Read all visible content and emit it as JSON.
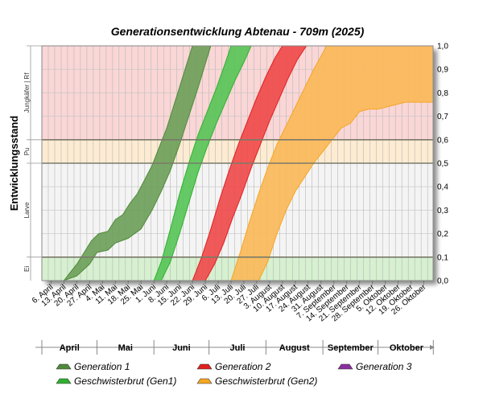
{
  "chart_data": {
    "type": "area",
    "title": "Generationsentwicklung Abtenau - 709m (2025)",
    "ylabel": "Entwicklungsstand",
    "ylim": [
      0,
      1
    ],
    "yticks": [
      "0,0",
      "0,1",
      "0,2",
      "0,3",
      "0,4",
      "0,5",
      "0,6",
      "0,7",
      "0,8",
      "0,9",
      "1,0"
    ],
    "grid": true,
    "legend_position": "bottom",
    "x_start": "2025-04-01",
    "x_end": "2025-10-31",
    "x_ticks": [
      {
        "date": "2025-04-06",
        "label": "6. April"
      },
      {
        "date": "2025-04-13",
        "label": "13. April"
      },
      {
        "date": "2025-04-20",
        "label": "20. April"
      },
      {
        "date": "2025-04-27",
        "label": "27. April"
      },
      {
        "date": "2025-05-04",
        "label": "4. Mai"
      },
      {
        "date": "2025-05-11",
        "label": "11. Mai"
      },
      {
        "date": "2025-05-18",
        "label": "18. Mai"
      },
      {
        "date": "2025-05-25",
        "label": "25. Mai"
      },
      {
        "date": "2025-06-01",
        "label": "1. Juni"
      },
      {
        "date": "2025-06-08",
        "label": "8. Juni"
      },
      {
        "date": "2025-06-15",
        "label": "15. Juni"
      },
      {
        "date": "2025-06-22",
        "label": "22. Juni"
      },
      {
        "date": "2025-06-29",
        "label": "29. Juni"
      },
      {
        "date": "2025-07-06",
        "label": "6. Juli"
      },
      {
        "date": "2025-07-13",
        "label": "13. Juli"
      },
      {
        "date": "2025-07-20",
        "label": "20. Juli"
      },
      {
        "date": "2025-07-27",
        "label": "27. Juli"
      },
      {
        "date": "2025-08-03",
        "label": "3. August"
      },
      {
        "date": "2025-08-10",
        "label": "10. August"
      },
      {
        "date": "2025-08-17",
        "label": "17. August"
      },
      {
        "date": "2025-08-24",
        "label": "24. August"
      },
      {
        "date": "2025-08-31",
        "label": "31. August"
      },
      {
        "date": "2025-09-07",
        "label": "7. September"
      },
      {
        "date": "2025-09-14",
        "label": "14. September"
      },
      {
        "date": "2025-09-21",
        "label": "21. September"
      },
      {
        "date": "2025-09-28",
        "label": "28. September"
      },
      {
        "date": "2025-10-05",
        "label": "5. Oktober"
      },
      {
        "date": "2025-10-12",
        "label": "12. Oktober"
      },
      {
        "date": "2025-10-19",
        "label": "19. Oktober"
      },
      {
        "date": "2025-10-26",
        "label": "26. Oktober"
      }
    ],
    "months": [
      {
        "label": "April",
        "start": "2025-04-01",
        "end": "2025-04-30"
      },
      {
        "label": "Mai",
        "start": "2025-05-01",
        "end": "2025-05-31"
      },
      {
        "label": "Juni",
        "start": "2025-06-01",
        "end": "2025-06-30"
      },
      {
        "label": "Juli",
        "start": "2025-07-01",
        "end": "2025-07-31"
      },
      {
        "label": "August",
        "start": "2025-08-01",
        "end": "2025-08-31"
      },
      {
        "label": "September",
        "start": "2025-09-01",
        "end": "2025-09-30"
      },
      {
        "label": "Oktober",
        "start": "2025-10-01",
        "end": "2025-10-31"
      }
    ],
    "stages": [
      {
        "label": "Ei",
        "from": 0.0,
        "to": 0.1,
        "color": "#d6f0d0"
      },
      {
        "label": "Larve",
        "from": 0.1,
        "to": 0.5,
        "color": "#f4f4f4"
      },
      {
        "label": "Pu",
        "from": 0.5,
        "to": 0.6,
        "color": "#fdebd2"
      },
      {
        "label": "Jungkäfer | Rf",
        "from": 0.6,
        "to": 1.0,
        "color": "#fad6d6"
      }
    ],
    "series": [
      {
        "name": "Generation 1",
        "color": "#4f8a3a",
        "fill": "#6b9e58",
        "upper": [
          [
            "2025-04-13",
            0.0
          ],
          [
            "2025-04-16",
            0.03
          ],
          [
            "2025-04-20",
            0.07
          ],
          [
            "2025-04-24",
            0.12
          ],
          [
            "2025-04-28",
            0.17
          ],
          [
            "2025-05-02",
            0.2
          ],
          [
            "2025-05-07",
            0.21
          ],
          [
            "2025-05-11",
            0.26
          ],
          [
            "2025-05-15",
            0.28
          ],
          [
            "2025-05-19",
            0.33
          ],
          [
            "2025-05-23",
            0.37
          ],
          [
            "2025-05-27",
            0.43
          ],
          [
            "2025-05-31",
            0.49
          ],
          [
            "2025-06-04",
            0.57
          ],
          [
            "2025-06-08",
            0.65
          ],
          [
            "2025-06-12",
            0.75
          ],
          [
            "2025-06-16",
            0.85
          ],
          [
            "2025-06-20",
            0.95
          ],
          [
            "2025-06-22",
            1.0
          ]
        ],
        "lower": [
          [
            "2025-04-13",
            0.0
          ],
          [
            "2025-04-20",
            0.02
          ],
          [
            "2025-04-27",
            0.07
          ],
          [
            "2025-05-01",
            0.12
          ],
          [
            "2025-05-07",
            0.13
          ],
          [
            "2025-05-11",
            0.16
          ],
          [
            "2025-05-18",
            0.18
          ],
          [
            "2025-05-25",
            0.22
          ],
          [
            "2025-05-31",
            0.3
          ],
          [
            "2025-06-05",
            0.38
          ],
          [
            "2025-06-10",
            0.47
          ],
          [
            "2025-06-15",
            0.58
          ],
          [
            "2025-06-20",
            0.7
          ],
          [
            "2025-06-25",
            0.82
          ],
          [
            "2025-06-30",
            0.95
          ],
          [
            "2025-07-02",
            1.0
          ]
        ]
      },
      {
        "name": "Geschwisterbrut (Gen1)",
        "color": "#2fb02f",
        "fill": "#55c455",
        "upper": [
          [
            "2025-06-01",
            0.0
          ],
          [
            "2025-06-05",
            0.08
          ],
          [
            "2025-06-10",
            0.22
          ],
          [
            "2025-06-15",
            0.37
          ],
          [
            "2025-06-20",
            0.5
          ],
          [
            "2025-06-25",
            0.62
          ],
          [
            "2025-06-30",
            0.72
          ],
          [
            "2025-07-05",
            0.82
          ],
          [
            "2025-07-10",
            0.93
          ],
          [
            "2025-07-13",
            1.0
          ]
        ],
        "lower": [
          [
            "2025-06-05",
            0.0
          ],
          [
            "2025-06-10",
            0.08
          ],
          [
            "2025-06-15",
            0.2
          ],
          [
            "2025-06-20",
            0.33
          ],
          [
            "2025-06-25",
            0.46
          ],
          [
            "2025-06-30",
            0.57
          ],
          [
            "2025-07-05",
            0.67
          ],
          [
            "2025-07-10",
            0.76
          ],
          [
            "2025-07-15",
            0.85
          ],
          [
            "2025-07-20",
            0.93
          ],
          [
            "2025-07-24",
            1.0
          ]
        ]
      },
      {
        "name": "Generation 2",
        "color": "#e02020",
        "fill": "#f04848",
        "upper": [
          [
            "2025-06-22",
            0.0
          ],
          [
            "2025-06-27",
            0.1
          ],
          [
            "2025-07-02",
            0.22
          ],
          [
            "2025-07-07",
            0.35
          ],
          [
            "2025-07-12",
            0.47
          ],
          [
            "2025-07-17",
            0.58
          ],
          [
            "2025-07-22",
            0.68
          ],
          [
            "2025-07-27",
            0.78
          ],
          [
            "2025-08-01",
            0.87
          ],
          [
            "2025-08-06",
            0.95
          ],
          [
            "2025-08-10",
            1.0
          ]
        ],
        "lower": [
          [
            "2025-06-29",
            0.0
          ],
          [
            "2025-07-04",
            0.07
          ],
          [
            "2025-07-09",
            0.16
          ],
          [
            "2025-07-14",
            0.27
          ],
          [
            "2025-07-19",
            0.37
          ],
          [
            "2025-07-24",
            0.48
          ],
          [
            "2025-07-29",
            0.58
          ],
          [
            "2025-08-03",
            0.68
          ],
          [
            "2025-08-08",
            0.77
          ],
          [
            "2025-08-13",
            0.86
          ],
          [
            "2025-08-18",
            0.94
          ],
          [
            "2025-08-23",
            1.0
          ]
        ]
      },
      {
        "name": "Geschwisterbrut (Gen2)",
        "color": "#f5a623",
        "fill": "#fbb857",
        "upper": [
          [
            "2025-07-13",
            0.0
          ],
          [
            "2025-07-18",
            0.12
          ],
          [
            "2025-07-23",
            0.25
          ],
          [
            "2025-07-28",
            0.37
          ],
          [
            "2025-08-02",
            0.48
          ],
          [
            "2025-08-07",
            0.58
          ],
          [
            "2025-08-12",
            0.66
          ],
          [
            "2025-08-17",
            0.74
          ],
          [
            "2025-08-22",
            0.82
          ],
          [
            "2025-08-27",
            0.9
          ],
          [
            "2025-09-01",
            0.97
          ],
          [
            "2025-09-03",
            1.0
          ],
          [
            "2025-10-31",
            1.0
          ]
        ],
        "lower": [
          [
            "2025-07-28",
            0.0
          ],
          [
            "2025-08-02",
            0.08
          ],
          [
            "2025-08-07",
            0.2
          ],
          [
            "2025-08-12",
            0.3
          ],
          [
            "2025-08-17",
            0.38
          ],
          [
            "2025-08-22",
            0.44
          ],
          [
            "2025-08-27",
            0.5
          ],
          [
            "2025-09-01",
            0.55
          ],
          [
            "2025-09-06",
            0.6
          ],
          [
            "2025-09-11",
            0.65
          ],
          [
            "2025-09-16",
            0.67
          ],
          [
            "2025-09-21",
            0.72
          ],
          [
            "2025-09-26",
            0.73
          ],
          [
            "2025-10-01",
            0.73
          ],
          [
            "2025-10-06",
            0.74
          ],
          [
            "2025-10-11",
            0.75
          ],
          [
            "2025-10-16",
            0.76
          ],
          [
            "2025-10-31",
            0.76
          ]
        ]
      },
      {
        "name": "Generation 3",
        "color": "#8a2f9e",
        "fill": "#a64db8",
        "upper": [],
        "lower": []
      }
    ],
    "legend": [
      {
        "label": "Generation 1",
        "color": "#4f8a3a"
      },
      {
        "label": "Generation 2",
        "color": "#e02020"
      },
      {
        "label": "Generation 3",
        "color": "#8a2f9e"
      },
      {
        "label": "Geschwisterbrut (Gen1)",
        "color": "#2fb02f"
      },
      {
        "label": "Geschwisterbrut (Gen2)",
        "color": "#f5a623"
      }
    ]
  }
}
